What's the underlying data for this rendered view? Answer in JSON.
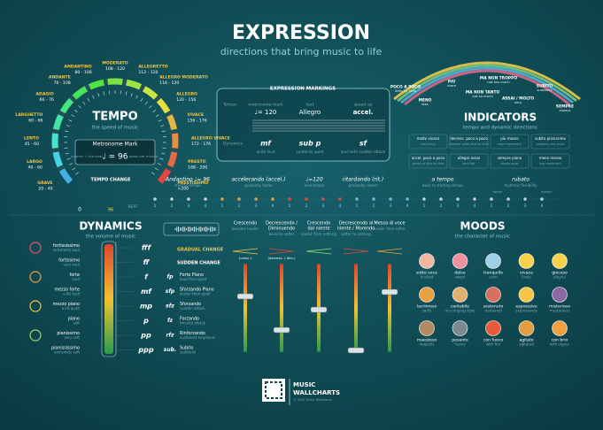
{
  "header": {
    "title": "EXPRESSION",
    "subtitle": "directions that bring music to life"
  },
  "tempo": {
    "title": "TEMPO",
    "subtitle": "the speed of music",
    "marks": [
      {
        "name": "GRAVE",
        "range": "20 - 40"
      },
      {
        "name": "LARGO",
        "range": "40 - 60"
      },
      {
        "name": "LENTO",
        "range": "45 - 60"
      },
      {
        "name": "LARGHETTO",
        "range": "60 - 66"
      },
      {
        "name": "ADAGIO",
        "range": "66 - 76"
      },
      {
        "name": "ANDANTE",
        "range": "76 - 108"
      },
      {
        "name": "ANDANTINO",
        "range": "80 - 108"
      },
      {
        "name": "MODERATO",
        "range": "108 - 120"
      },
      {
        "name": "ALLEGRETTO",
        "range": "112 - 120"
      },
      {
        "name": "ALLEGRO MODERATO",
        "range": "116 - 120"
      },
      {
        "name": "ALLEGRO",
        "range": "120 - 156"
      },
      {
        "name": "VIVACE",
        "range": "156 - 176"
      },
      {
        "name": "ALLEGRO VIVACE",
        "range": "172 - 176"
      },
      {
        "name": "PRESTO",
        "range": "168 - 200"
      },
      {
        "name": "PRESTISSIMO",
        "range": ">200"
      }
    ],
    "metronome": {
      "title": "Metronome Mark",
      "note_caption": "quarter = the beat",
      "value": "♩ = 96",
      "unit": "beats per minute"
    },
    "dial": [
      "0",
      "96"
    ]
  },
  "markings": {
    "title": "EXPRESSION MARKINGS",
    "rows": [
      {
        "label": "Tempo",
        "items": [
          {
            "caption": "metronome mark",
            "symbol": "♩= 120"
          },
          {
            "caption": "text",
            "symbol": "Allegro"
          },
          {
            "caption": "speed up",
            "symbol": "accel."
          }
        ]
      },
      {
        "label": "Dynamics",
        "items": [
          {
            "caption": "quite loud",
            "symbol": "mf"
          },
          {
            "caption": "suddenly quiet",
            "symbol": "sub p"
          },
          {
            "caption": "loud with sudden attack",
            "symbol": "sf"
          }
        ]
      }
    ]
  },
  "indicators": {
    "title": "INDICATORS",
    "subtitle": "tempo and dynamic directions",
    "words": [
      {
        "term": "POCO A POCO",
        "meaning": "little by little"
      },
      {
        "term": "MENO",
        "meaning": "less"
      },
      {
        "term": "PIÙ",
        "meaning": "more"
      },
      {
        "term": "MA NON TANTO",
        "meaning": "not so much"
      },
      {
        "term": "MA NON TROPPO",
        "meaning": "not too much"
      },
      {
        "term": "ASSAI / MOLTO",
        "meaning": "very"
      },
      {
        "term": "SUBITO",
        "meaning": "suddenly"
      },
      {
        "term": "SEMPRE",
        "meaning": "always"
      }
    ],
    "examples": [
      {
        "term": "molto vivace",
        "meaning": "very lively"
      },
      {
        "term": "decresc. poco a poco",
        "meaning": "become softer little by little"
      },
      {
        "term": "più mosso",
        "meaning": "more movement"
      },
      {
        "term": "subito pianissimo",
        "meaning": "suddenly very quiet"
      },
      {
        "term": "accel. poco a poco",
        "meaning": "speed up little by little"
      },
      {
        "term": "allegro assai",
        "meaning": "very fast"
      },
      {
        "term": "sempre piano",
        "meaning": "always quiet"
      },
      {
        "term": "meno mosso",
        "meaning": "less movement"
      }
    ]
  },
  "timeline": {
    "title": "TEMPO CHANGE",
    "beat_label": "BEAT",
    "events": [
      {
        "term": "Andantino ♩= 96",
        "meaning": "starting tempo"
      },
      {
        "term": "accelerando (accel.)",
        "meaning": "gradually faster"
      },
      {
        "term": "♩=120",
        "meaning": "new tempo"
      },
      {
        "term": "ritardando (rit.)",
        "meaning": "gradually slower"
      },
      {
        "term": "a tempo",
        "meaning": "back to starting tempo"
      },
      {
        "term": "rubato",
        "meaning": "rhythmic flexibility"
      }
    ],
    "rubato": [
      "faster",
      "slower"
    ],
    "beats": [
      "1",
      "2",
      "3",
      "4",
      "1",
      "2",
      "3",
      "4",
      "1",
      "2",
      "3",
      "4",
      "1",
      "2",
      "3",
      "4",
      "1",
      "2",
      "3",
      "4",
      "1",
      "2",
      "3",
      "4"
    ]
  },
  "dynamics": {
    "title": "DYNAMICS",
    "subtitle": "the volume of music",
    "levels": [
      {
        "symbol": "fff",
        "name": "fortississimo",
        "meaning": "extremely loud"
      },
      {
        "symbol": "ff",
        "name": "fortissimo",
        "meaning": "very loud"
      },
      {
        "symbol": "f",
        "name": "forte",
        "meaning": "loud"
      },
      {
        "symbol": "mf",
        "name": "mezzo forte",
        "meaning": "a bit loud"
      },
      {
        "symbol": "mp",
        "name": "mezzo piano",
        "meaning": "a bit quiet"
      },
      {
        "symbol": "p",
        "name": "piano",
        "meaning": "soft"
      },
      {
        "symbol": "pp",
        "name": "pianissimo",
        "meaning": "very soft"
      },
      {
        "symbol": "ppp",
        "name": "pianississimo",
        "meaning": "extremely soft"
      }
    ],
    "changes": {
      "gradual": "GRADUAL CHANGE",
      "sudden": "SUDDEN CHANGE",
      "items": [
        {
          "symbol": "fp",
          "name": "Forte Piano",
          "meaning": "loud then quiet"
        },
        {
          "symbol": "sfp",
          "name": "Sforzando Piano",
          "meaning": "louder then quiet"
        },
        {
          "symbol": "sfz",
          "name": "Sforzando",
          "meaning": "sudden attack"
        },
        {
          "symbol": "fz",
          "name": "Forzando",
          "meaning": "forceful attack"
        },
        {
          "symbol": "rfz",
          "name": "Rinforzando",
          "meaning": "sustained emphasis"
        },
        {
          "symbol": "sub.",
          "name": "Subito",
          "meaning": "suddenly"
        }
      ]
    },
    "sliders": [
      {
        "name": [
          "Crescendo"
        ],
        "meaning": "become louder",
        "abbr": "(cresc.)"
      },
      {
        "name": [
          "Decrescendo /",
          "Diminuendo"
        ],
        "meaning": "become softer",
        "abbr": "(decresc. / dim.)"
      },
      {
        "name": [
          "Crescendo",
          "dal niente"
        ],
        "meaning": "louder from nothing"
      },
      {
        "name": [
          "Decrescendo al",
          "niente / Morendo"
        ],
        "meaning": "softer to nothing"
      },
      {
        "name": [
          "Messa di voce"
        ],
        "meaning": "louder then softer"
      }
    ]
  },
  "moods": {
    "title": "MOODS",
    "subtitle": "the character of music",
    "items": [
      {
        "term": "sotto voce",
        "meaning": "hushed"
      },
      {
        "term": "dolce",
        "meaning": "sweet"
      },
      {
        "term": "tranquillo",
        "meaning": "calm"
      },
      {
        "term": "vivace",
        "meaning": "lively"
      },
      {
        "term": "giocoso",
        "meaning": "playful"
      },
      {
        "term": "lacrimoso",
        "meaning": "sadly"
      },
      {
        "term": "cantabile",
        "meaning": "in a singing style"
      },
      {
        "term": "sostenuto",
        "meaning": "sustained"
      },
      {
        "term": "espressivo",
        "meaning": "expressively"
      },
      {
        "term": "misterioso",
        "meaning": "mysterious"
      },
      {
        "term": "maestoso",
        "meaning": "majestic"
      },
      {
        "term": "pesante",
        "meaning": "heavy"
      },
      {
        "term": "con fuoco",
        "meaning": "with fire"
      },
      {
        "term": "agitato",
        "meaning": "agitated"
      },
      {
        "term": "con brio",
        "meaning": "with vigour"
      }
    ]
  },
  "footer": {
    "scan": "SCAN",
    "brand": [
      "MUSIC",
      "WALLCHARTS"
    ],
    "copyright": "© 2024 Music Wallcharts"
  }
}
